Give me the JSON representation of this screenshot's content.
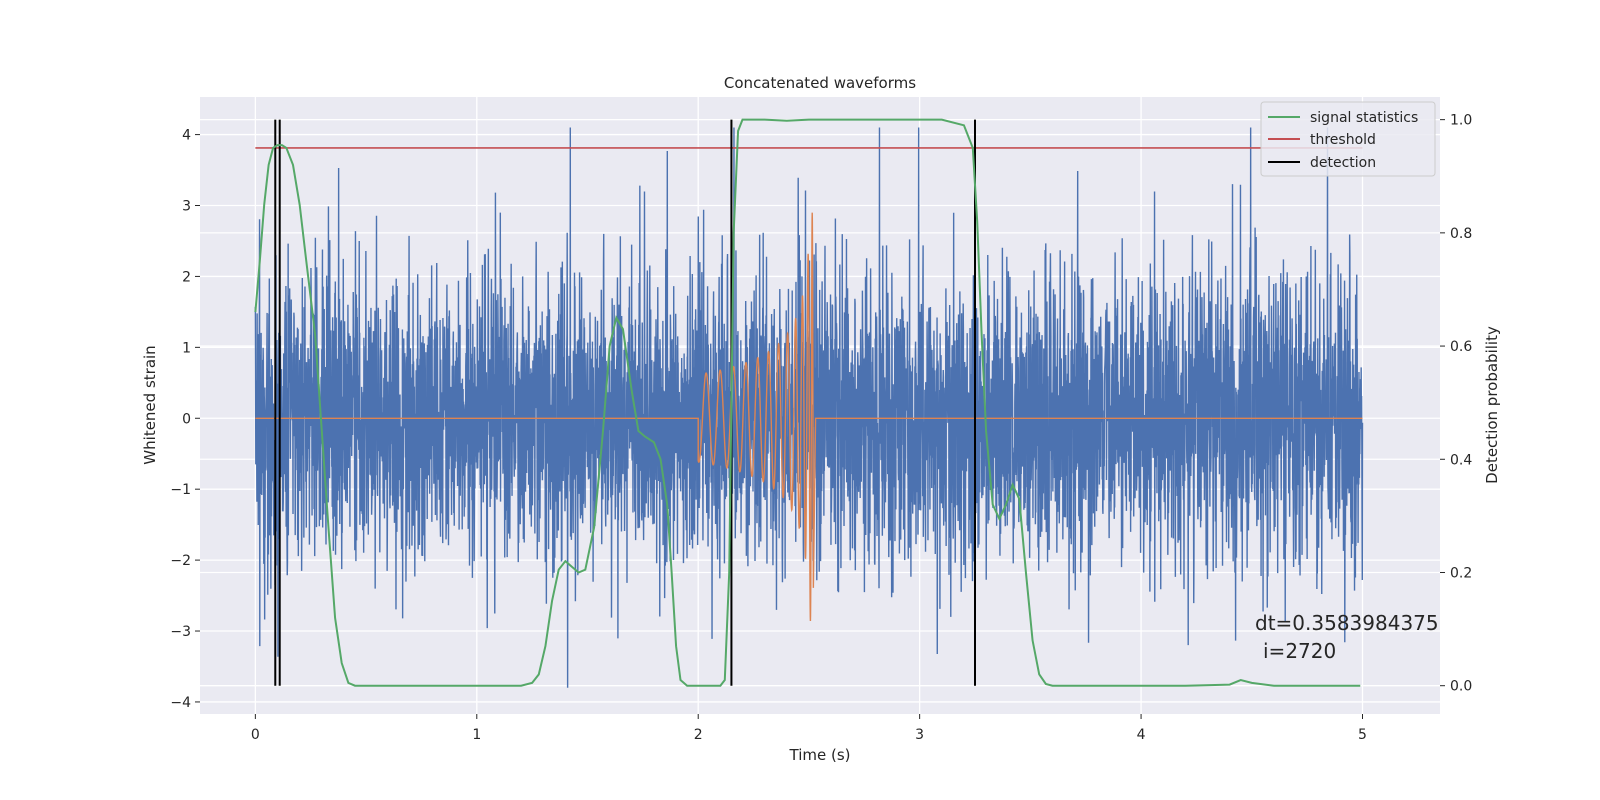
{
  "chart_data": {
    "type": "line",
    "title": "Concatenated waveforms",
    "xlabel": "Time (s)",
    "ylabel": "Whitened strain",
    "y2label": "Detection probability",
    "xlim": [
      -0.25,
      5.35
    ],
    "ylim": [
      -4.17,
      4.53
    ],
    "y2lim": [
      -0.05,
      1.04
    ],
    "xticks": [
      0,
      1,
      2,
      3,
      4,
      5
    ],
    "yticks": [
      -4,
      -3,
      -2,
      -1,
      0,
      1,
      2,
      3,
      4
    ],
    "y2ticks": [
      0.0,
      0.2,
      0.4,
      0.6,
      0.8,
      1.0
    ],
    "xtick_labels": [
      "0",
      "1",
      "2",
      "3",
      "4",
      "5"
    ],
    "ytick_labels": [
      "−4",
      "−3",
      "−2",
      "−1",
      "0",
      "1",
      "2",
      "3",
      "4"
    ],
    "y2tick_labels": [
      "0.0",
      "0.2",
      "0.4",
      "0.6",
      "0.8",
      "1.0"
    ],
    "grid": true,
    "legend_position": "top-right",
    "colors": {
      "strain": "#4c72b0",
      "injection": "#dd8452",
      "signal_statistics": "#55a868",
      "threshold": "#c44e52",
      "detection": "#000000",
      "background": "#eaeaf2"
    },
    "series": [
      {
        "name": "",
        "role": "strain",
        "axis": "left",
        "x_range": [
          0,
          5
        ],
        "amplitude_range": [
          -3.8,
          4.1
        ]
      },
      {
        "name": "",
        "role": "injection",
        "axis": "left",
        "x_range": [
          2.0,
          2.52
        ],
        "peak_amplitude": 2.9,
        "baseline": 0
      },
      {
        "name": "signal statistics",
        "role": "signal_statistics",
        "axis": "right",
        "points": [
          [
            0.0,
            0.66
          ],
          [
            0.02,
            0.75
          ],
          [
            0.04,
            0.85
          ],
          [
            0.06,
            0.92
          ],
          [
            0.08,
            0.95
          ],
          [
            0.1,
            0.955
          ],
          [
            0.12,
            0.955
          ],
          [
            0.14,
            0.95
          ],
          [
            0.17,
            0.92
          ],
          [
            0.2,
            0.85
          ],
          [
            0.23,
            0.75
          ],
          [
            0.27,
            0.62
          ],
          [
            0.3,
            0.45
          ],
          [
            0.33,
            0.28
          ],
          [
            0.36,
            0.12
          ],
          [
            0.39,
            0.04
          ],
          [
            0.42,
            0.005
          ],
          [
            0.45,
            0.0
          ],
          [
            0.6,
            0.0
          ],
          [
            0.8,
            0.0
          ],
          [
            1.0,
            0.0
          ],
          [
            1.2,
            0.0
          ],
          [
            1.25,
            0.005
          ],
          [
            1.28,
            0.02
          ],
          [
            1.31,
            0.07
          ],
          [
            1.34,
            0.15
          ],
          [
            1.37,
            0.205
          ],
          [
            1.4,
            0.22
          ],
          [
            1.43,
            0.21
          ],
          [
            1.46,
            0.2
          ],
          [
            1.49,
            0.205
          ],
          [
            1.53,
            0.28
          ],
          [
            1.57,
            0.45
          ],
          [
            1.6,
            0.6
          ],
          [
            1.63,
            0.65
          ],
          [
            1.66,
            0.63
          ],
          [
            1.7,
            0.52
          ],
          [
            1.73,
            0.45
          ],
          [
            1.76,
            0.44
          ],
          [
            1.8,
            0.43
          ],
          [
            1.83,
            0.4
          ],
          [
            1.86,
            0.32
          ],
          [
            1.88,
            0.2
          ],
          [
            1.9,
            0.07
          ],
          [
            1.92,
            0.01
          ],
          [
            1.95,
            0.0
          ],
          [
            2.05,
            0.0
          ],
          [
            2.1,
            0.0
          ],
          [
            2.12,
            0.01
          ],
          [
            2.14,
            0.2
          ],
          [
            2.16,
            0.8
          ],
          [
            2.18,
            0.98
          ],
          [
            2.2,
            1.0
          ],
          [
            2.3,
            1.0
          ],
          [
            2.4,
            0.998
          ],
          [
            2.5,
            1.0
          ],
          [
            2.7,
            1.0
          ],
          [
            2.9,
            1.0
          ],
          [
            3.1,
            1.0
          ],
          [
            3.2,
            0.99
          ],
          [
            3.24,
            0.95
          ],
          [
            3.26,
            0.82
          ],
          [
            3.28,
            0.62
          ],
          [
            3.3,
            0.45
          ],
          [
            3.33,
            0.32
          ],
          [
            3.36,
            0.295
          ],
          [
            3.39,
            0.32
          ],
          [
            3.42,
            0.355
          ],
          [
            3.45,
            0.33
          ],
          [
            3.48,
            0.2
          ],
          [
            3.51,
            0.08
          ],
          [
            3.54,
            0.02
          ],
          [
            3.57,
            0.003
          ],
          [
            3.6,
            0.0
          ],
          [
            3.8,
            0.0
          ],
          [
            4.0,
            0.0
          ],
          [
            4.2,
            0.0
          ],
          [
            4.4,
            0.002
          ],
          [
            4.45,
            0.01
          ],
          [
            4.5,
            0.005
          ],
          [
            4.6,
            0.0
          ],
          [
            4.8,
            0.0
          ],
          [
            4.99,
            0.0
          ]
        ]
      },
      {
        "name": "threshold",
        "role": "threshold",
        "axis": "right",
        "points": [
          [
            0.0,
            0.95
          ],
          [
            5.0,
            0.95
          ]
        ]
      },
      {
        "name": "detection",
        "role": "detection",
        "axis": "right",
        "x": [
          0.09,
          0.11,
          2.15,
          3.25
        ],
        "y_range": [
          0.0,
          1.0
        ]
      }
    ],
    "annotation": {
      "line1": "dt=0.3583984375",
      "line2": "i=2720"
    }
  }
}
